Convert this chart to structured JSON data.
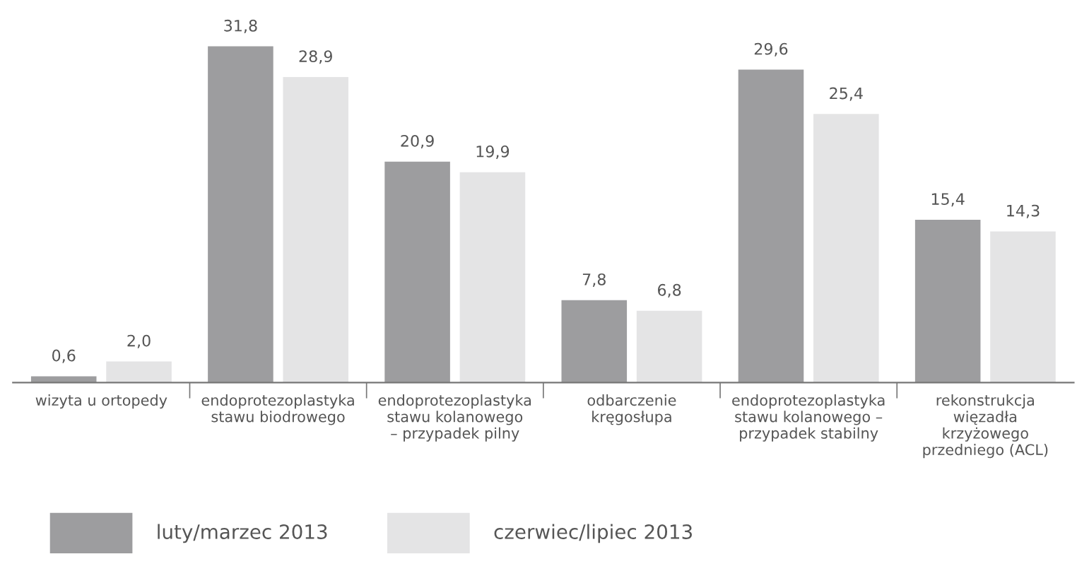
{
  "chart_data": {
    "type": "bar",
    "categories": [
      "wizyta u ortopedy",
      "endoprotezoplastyka\nstawu biodrowego",
      "endoprotezoplastyka\nstawu kolanowego\n– przypadek pilny",
      "odbarczenie\nkręgosłupa",
      "endoprotezoplastyka\nstawu kolanowego –\nprzypadek stabilny",
      "rekonstrukcja\nwięzadła\nkrzyżowego\nprzedniego (ACL)"
    ],
    "series": [
      {
        "name": "luty/marzec 2013",
        "color": "#9d9d9f",
        "values": [
          0.6,
          31.8,
          20.9,
          7.8,
          29.6,
          15.4
        ],
        "value_labels": [
          "0,6",
          "31,8",
          "20,9",
          "7,8",
          "29,6",
          "15,4"
        ]
      },
      {
        "name": "czerwiec/lipiec 2013",
        "color": "#e4e4e5",
        "values": [
          2.0,
          28.9,
          19.9,
          6.8,
          25.4,
          14.3
        ],
        "value_labels": [
          "2,0",
          "28,9",
          "19,9",
          "6,8",
          "25,4",
          "14,3"
        ]
      }
    ],
    "legend": "bottom left"
  }
}
